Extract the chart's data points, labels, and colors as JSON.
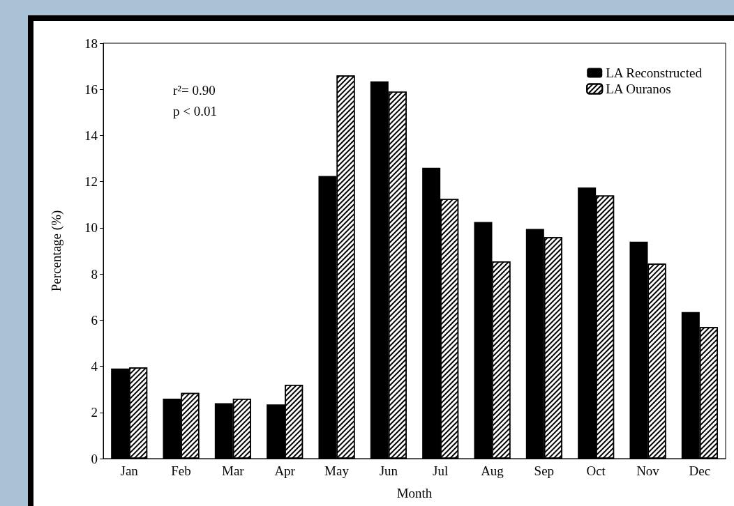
{
  "chart_data": {
    "type": "bar",
    "xlabel": "Month",
    "ylabel": "Percentage (%)",
    "categories": [
      "Jan",
      "Feb",
      "Mar",
      "Apr",
      "May",
      "Jun",
      "Jul",
      "Aug",
      "Sep",
      "Oct",
      "Nov",
      "Dec"
    ],
    "series": [
      {
        "name": "LA Reconstructed",
        "color": "#000000",
        "values": [
          3.9,
          2.6,
          2.4,
          2.35,
          12.25,
          16.35,
          12.6,
          10.25,
          9.95,
          11.75,
          9.4,
          6.35
        ]
      },
      {
        "name": "LA Ouranos",
        "color": "#000000",
        "values": [
          3.95,
          2.85,
          2.6,
          3.2,
          16.6,
          15.9,
          11.25,
          8.55,
          9.6,
          11.4,
          8.45,
          5.7
        ]
      }
    ],
    "ylim": [
      0,
      18
    ],
    "yticks": [
      0,
      2,
      4,
      6,
      8,
      10,
      12,
      14,
      16,
      18
    ],
    "annotations": [
      "r²= 0.90",
      "p < 0.01"
    ],
    "grid": false,
    "legend": "top right"
  }
}
